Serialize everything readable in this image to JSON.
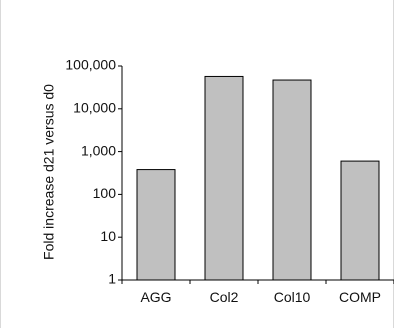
{
  "chart_data": {
    "type": "bar",
    "title": "",
    "xlabel": "",
    "ylabel": "Fold increase d21 versus d0",
    "scale": "log",
    "ylim": [
      1,
      100000
    ],
    "yticks": [
      1,
      10,
      100,
      1000,
      10000,
      100000
    ],
    "ytick_labels": [
      "1",
      "10",
      "100",
      "1,000",
      "10,000",
      "100,000"
    ],
    "categories": [
      "AGG",
      "Col2",
      "Col10",
      "COMP"
    ],
    "values": [
      380,
      57000,
      47000,
      600
    ],
    "grid": false,
    "legend": "none",
    "colors": {
      "bar_fill": "#c0c0c0",
      "bar_stroke": "#000000",
      "axis": "#000000",
      "frame": "#d9d9d9"
    }
  }
}
